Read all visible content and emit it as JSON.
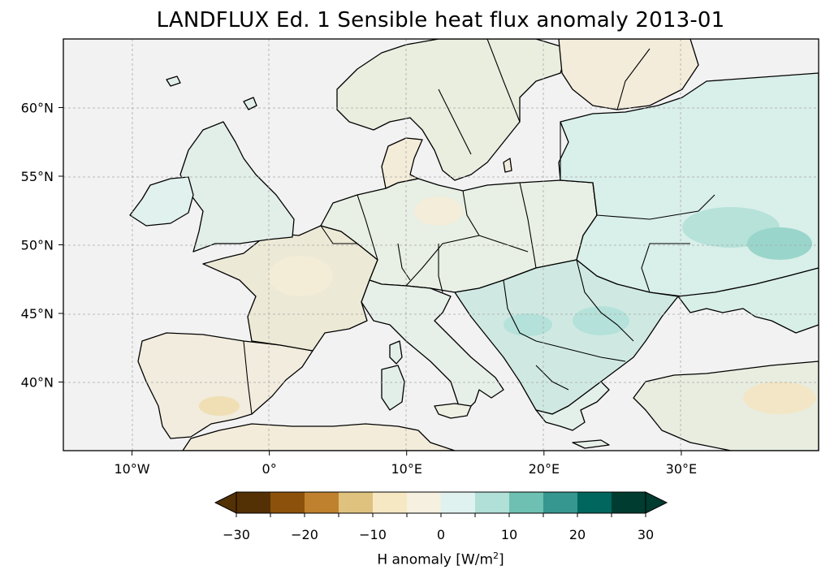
{
  "title": "LANDFLUX Ed. 1 Sensible heat flux anomaly 2013-01",
  "map": {
    "projection": "PlateCarree",
    "lon_range": [
      -15,
      40
    ],
    "lat_range": [
      35,
      65
    ],
    "background_color": "#f2f2f2",
    "coastline_color": "#000000",
    "gridlines": true,
    "x_ticks": [
      {
        "lon": -10,
        "label": "10°W"
      },
      {
        "lon": 0,
        "label": "0°"
      },
      {
        "lon": 10,
        "label": "10°E"
      },
      {
        "lon": 20,
        "label": "20°E"
      },
      {
        "lon": 30,
        "label": "30°E"
      }
    ],
    "y_ticks": [
      {
        "lat": 60,
        "label": "60°N"
      },
      {
        "lat": 55,
        "label": "55°N"
      },
      {
        "lat": 50,
        "label": "50°N"
      },
      {
        "lat": 45,
        "label": "45°N"
      },
      {
        "lat": 40,
        "label": "40°N"
      }
    ]
  },
  "colorbar": {
    "label": "H anomaly [W/m",
    "label_sup": "2",
    "label_end": "]",
    "levels": [
      -30,
      -25,
      -20,
      -15,
      -10,
      -5,
      0,
      5,
      10,
      15,
      20,
      25,
      30
    ],
    "colors": [
      "#543005",
      "#8c510a",
      "#bf812d",
      "#dfc27d",
      "#f6e8c3",
      "#f5f0e0",
      "#e0f2ef",
      "#b0e0d8",
      "#6dc0b2",
      "#35978f",
      "#01665e",
      "#003c30"
    ],
    "ext_low_color": "#543005",
    "ext_high_color": "#003c30",
    "tick_labels": [
      {
        "value": -30,
        "label": "−30"
      },
      {
        "value": -20,
        "label": "−20"
      },
      {
        "value": -10,
        "label": "−10"
      },
      {
        "value": 0,
        "label": "0"
      },
      {
        "value": 10,
        "label": "10"
      },
      {
        "value": 20,
        "label": "20"
      },
      {
        "value": 30,
        "label": "30"
      }
    ],
    "extend": "both"
  }
}
